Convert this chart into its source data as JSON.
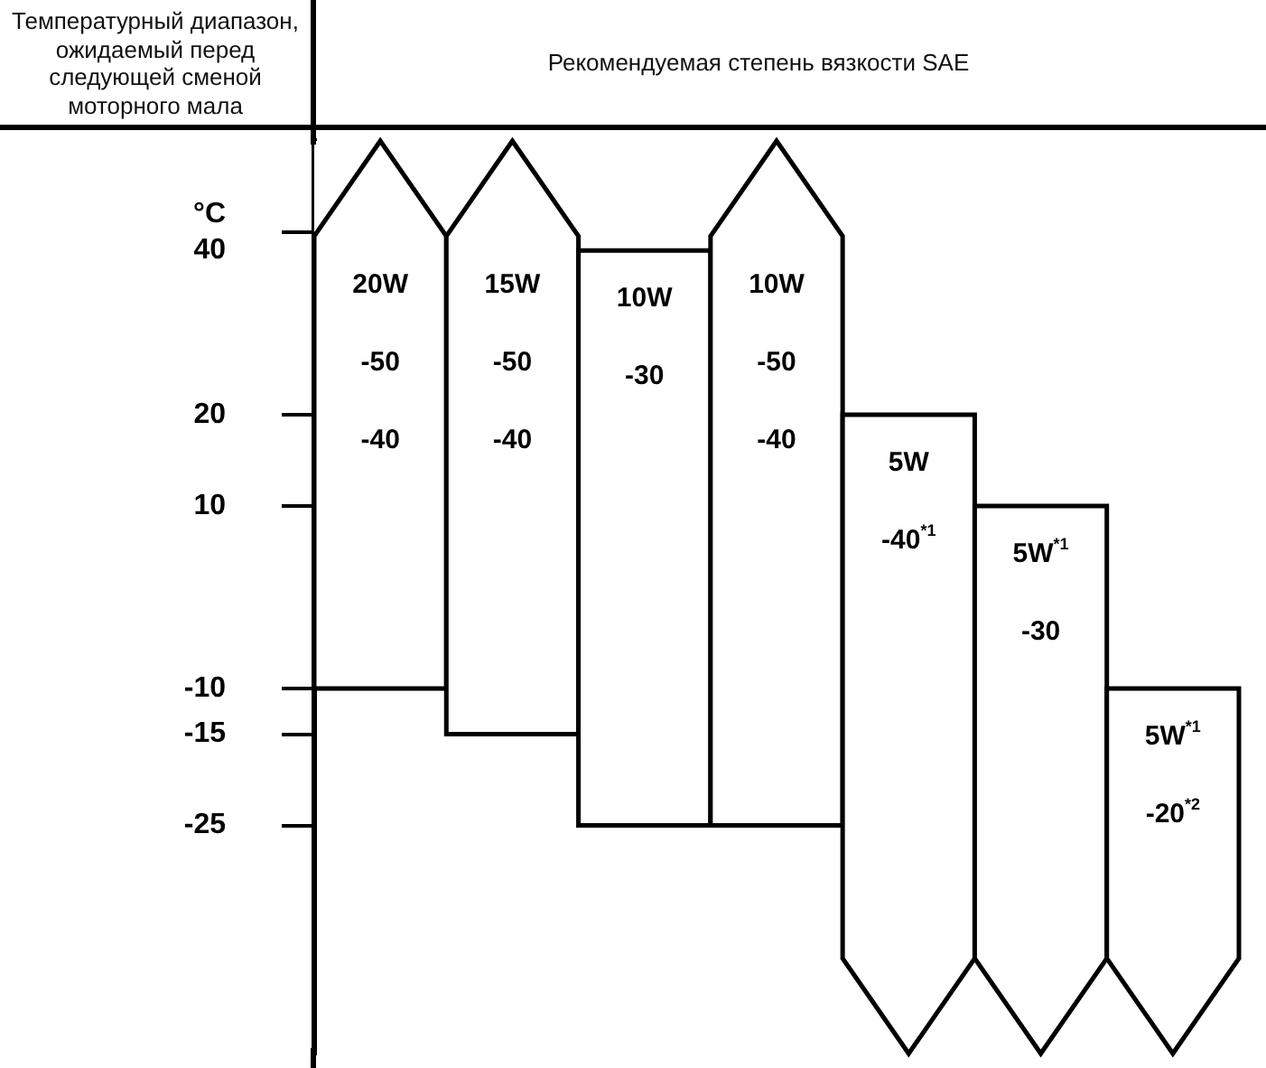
{
  "chart_data": {
    "type": "bar",
    "title": "Рекомендуемая степень вязкости SAE",
    "ylabel": "Температурный диапазон, ожидаемый перед следующей сменой моторного мала",
    "categories": [
      null,
      null,
      null,
      null,
      null,
      null,
      null
    ],
    "base": [
      -10,
      -15,
      -25,
      -25,
      -50,
      -50,
      -50
    ],
    "values": [
      60,
      65,
      63,
      75,
      70,
      60,
      40
    ],
    "color": "#ffffff",
    "annotations": [
      "20W\n-50\n-40",
      "15W\n-50\n-40",
      "10W\n-30",
      "10W\n-50\n-40",
      "5W\n-40$^{*1}$",
      "5W$^{*1}$\n-30",
      "5W$^{*1}$\n-20$^{*2}$"
    ],
    "ylim": [
      -50,
      50
    ],
    "yticks": [
      -25,
      -15,
      -10,
      10,
      20,
      {
        "value": 40,
        "label": "°C\n40"
      }
    ],
    "tick_labels": "y",
    "grid": false,
    "legend": false
  }
}
